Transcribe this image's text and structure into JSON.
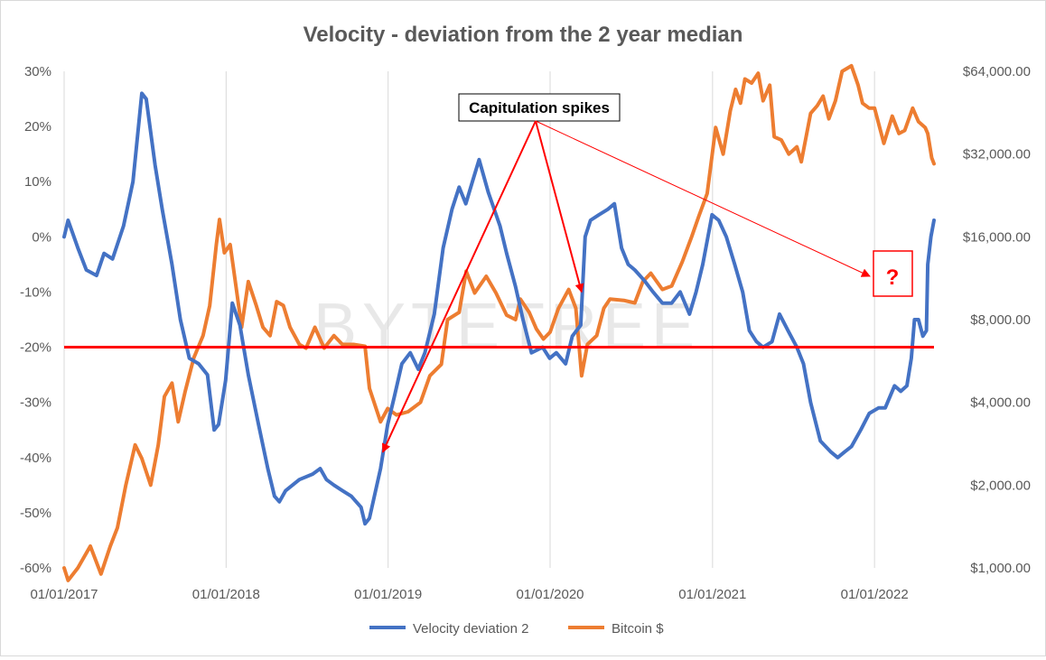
{
  "chart_data": {
    "type": "line",
    "title": "Velocity - deviation from the 2 year median",
    "xlabel": "",
    "ylabel_left": "",
    "ylabel_right": "",
    "x_tick_labels": [
      "01/01/2017",
      "01/01/2018",
      "01/01/2019",
      "01/01/2020",
      "01/01/2021",
      "01/01/2022"
    ],
    "x_range": [
      "2017-01-01",
      "2022-05-15"
    ],
    "y_left": {
      "ticks": [
        30,
        20,
        10,
        0,
        -10,
        -20,
        -30,
        -40,
        -50,
        -60
      ],
      "tick_labels": [
        "30%",
        "20%",
        "10%",
        "0%",
        "-10%",
        "-20%",
        "-30%",
        "-40%",
        "-50%",
        "-60%"
      ],
      "range": [
        -60,
        30
      ],
      "unit": "%"
    },
    "y_right": {
      "scale": "log2",
      "ticks": [
        1000,
        2000,
        4000,
        8000,
        16000,
        32000,
        64000
      ],
      "tick_labels": [
        "$1,000.00",
        "$2,000.00",
        "$4,000.00",
        "$8,000.00",
        "$16,000.00",
        "$32,000.00",
        "$64,000.00"
      ],
      "range": [
        1000,
        64000
      ]
    },
    "grid": "vertical-only",
    "reference_line": {
      "value": -20,
      "axis": "left",
      "color": "#ff0000"
    },
    "legend_position": "bottom",
    "series": [
      {
        "name": "Velocity deviation 2",
        "axis": "left",
        "color": "#4472c4",
        "points": [
          [
            "2017-01-01",
            0
          ],
          [
            "2017-01-10",
            3
          ],
          [
            "2017-02-01",
            -2
          ],
          [
            "2017-02-20",
            -6
          ],
          [
            "2017-03-15",
            -7
          ],
          [
            "2017-04-01",
            -3
          ],
          [
            "2017-04-20",
            -4
          ],
          [
            "2017-05-15",
            2
          ],
          [
            "2017-06-05",
            10
          ],
          [
            "2017-06-25",
            26
          ],
          [
            "2017-07-05",
            25
          ],
          [
            "2017-07-25",
            13
          ],
          [
            "2017-08-10",
            5
          ],
          [
            "2017-09-01",
            -5
          ],
          [
            "2017-09-20",
            -15
          ],
          [
            "2017-10-10",
            -22
          ],
          [
            "2017-10-31",
            -23
          ],
          [
            "2017-11-20",
            -25
          ],
          [
            "2017-12-05",
            -35
          ],
          [
            "2017-12-15",
            -34
          ],
          [
            "2017-12-31",
            -26
          ],
          [
            "2018-01-15",
            -12
          ],
          [
            "2018-02-01",
            -16
          ],
          [
            "2018-02-20",
            -25
          ],
          [
            "2018-03-15",
            -34
          ],
          [
            "2018-04-05",
            -42
          ],
          [
            "2018-04-20",
            -47
          ],
          [
            "2018-05-01",
            -48
          ],
          [
            "2018-05-15",
            -46
          ],
          [
            "2018-06-15",
            -44
          ],
          [
            "2018-07-15",
            -43
          ],
          [
            "2018-08-01",
            -42
          ],
          [
            "2018-08-15",
            -44
          ],
          [
            "2018-09-01",
            -45
          ],
          [
            "2018-09-20",
            -46
          ],
          [
            "2018-10-10",
            -47
          ],
          [
            "2018-11-01",
            -49
          ],
          [
            "2018-11-10",
            -52
          ],
          [
            "2018-11-20",
            -51
          ],
          [
            "2018-12-15",
            -42
          ],
          [
            "2018-12-31",
            -34
          ],
          [
            "2019-01-15",
            -29
          ],
          [
            "2019-02-01",
            -23
          ],
          [
            "2019-02-20",
            -21
          ],
          [
            "2019-03-10",
            -24
          ],
          [
            "2019-03-25",
            -21
          ],
          [
            "2019-04-15",
            -14
          ],
          [
            "2019-05-05",
            -2
          ],
          [
            "2019-05-25",
            5
          ],
          [
            "2019-06-10",
            9
          ],
          [
            "2019-06-25",
            6
          ],
          [
            "2019-07-10",
            10
          ],
          [
            "2019-07-25",
            14
          ],
          [
            "2019-08-15",
            8
          ],
          [
            "2019-09-10",
            2
          ],
          [
            "2019-09-25",
            -3
          ],
          [
            "2019-10-15",
            -9
          ],
          [
            "2019-11-01",
            -15
          ],
          [
            "2019-11-20",
            -21
          ],
          [
            "2019-12-15",
            -20
          ],
          [
            "2019-12-31",
            -22
          ],
          [
            "2020-01-15",
            -21
          ],
          [
            "2020-02-05",
            -23
          ],
          [
            "2020-02-20",
            -18
          ],
          [
            "2020-03-10",
            -16
          ],
          [
            "2020-03-20",
            0
          ],
          [
            "2020-04-01",
            3
          ],
          [
            "2020-04-20",
            4
          ],
          [
            "2020-05-10",
            5
          ],
          [
            "2020-05-25",
            6
          ],
          [
            "2020-06-10",
            -2
          ],
          [
            "2020-06-25",
            -5
          ],
          [
            "2020-07-10",
            -6
          ],
          [
            "2020-08-01",
            -8
          ],
          [
            "2020-08-20",
            -10
          ],
          [
            "2020-09-10",
            -12
          ],
          [
            "2020-10-01",
            -12
          ],
          [
            "2020-10-20",
            -10
          ],
          [
            "2020-11-10",
            -14
          ],
          [
            "2020-11-25",
            -10
          ],
          [
            "2020-12-10",
            -5
          ],
          [
            "2020-12-31",
            4
          ],
          [
            "2021-01-15",
            3
          ],
          [
            "2021-02-01",
            0
          ],
          [
            "2021-02-20",
            -5
          ],
          [
            "2021-03-10",
            -10
          ],
          [
            "2021-03-25",
            -17
          ],
          [
            "2021-04-10",
            -19
          ],
          [
            "2021-04-25",
            -20
          ],
          [
            "2021-05-15",
            -19
          ],
          [
            "2021-06-01",
            -14
          ],
          [
            "2021-06-20",
            -17
          ],
          [
            "2021-07-10",
            -20
          ],
          [
            "2021-07-25",
            -23
          ],
          [
            "2021-08-10",
            -30
          ],
          [
            "2021-09-01",
            -37
          ],
          [
            "2021-09-25",
            -39
          ],
          [
            "2021-10-10",
            -40
          ],
          [
            "2021-10-25",
            -39
          ],
          [
            "2021-11-10",
            -38
          ],
          [
            "2021-12-01",
            -35
          ],
          [
            "2021-12-20",
            -32
          ],
          [
            "2022-01-10",
            -31
          ],
          [
            "2022-01-25",
            -31
          ],
          [
            "2022-02-15",
            -27
          ],
          [
            "2022-03-01",
            -28
          ],
          [
            "2022-03-15",
            -27
          ],
          [
            "2022-03-25",
            -22
          ],
          [
            "2022-04-01",
            -15
          ],
          [
            "2022-04-10",
            -15
          ],
          [
            "2022-04-20",
            -18
          ],
          [
            "2022-04-28",
            -17
          ],
          [
            "2022-05-01",
            -5
          ],
          [
            "2022-05-08",
            0
          ],
          [
            "2022-05-15",
            3
          ]
        ]
      },
      {
        "name": "Bitcoin $",
        "axis": "right",
        "color": "#ed7d31",
        "points": [
          [
            "2017-01-01",
            1000
          ],
          [
            "2017-01-10",
            900
          ],
          [
            "2017-02-01",
            1000
          ],
          [
            "2017-03-01",
            1200
          ],
          [
            "2017-03-25",
            950
          ],
          [
            "2017-04-15",
            1200
          ],
          [
            "2017-05-01",
            1400
          ],
          [
            "2017-05-20",
            2000
          ],
          [
            "2017-06-10",
            2800
          ],
          [
            "2017-06-25",
            2500
          ],
          [
            "2017-07-15",
            2000
          ],
          [
            "2017-08-01",
            2800
          ],
          [
            "2017-08-15",
            4200
          ],
          [
            "2017-09-01",
            4700
          ],
          [
            "2017-09-15",
            3400
          ],
          [
            "2017-10-01",
            4400
          ],
          [
            "2017-10-20",
            5800
          ],
          [
            "2017-11-10",
            7000
          ],
          [
            "2017-11-25",
            9000
          ],
          [
            "2017-12-10",
            15000
          ],
          [
            "2017-12-17",
            18500
          ],
          [
            "2017-12-28",
            14000
          ],
          [
            "2018-01-10",
            15000
          ],
          [
            "2018-01-20",
            11500
          ],
          [
            "2018-02-05",
            7500
          ],
          [
            "2018-02-20",
            11000
          ],
          [
            "2018-03-10",
            9000
          ],
          [
            "2018-03-25",
            7500
          ],
          [
            "2018-04-10",
            7000
          ],
          [
            "2018-04-25",
            9300
          ],
          [
            "2018-05-10",
            9000
          ],
          [
            "2018-05-25",
            7500
          ],
          [
            "2018-06-15",
            6500
          ],
          [
            "2018-06-30",
            6300
          ],
          [
            "2018-07-20",
            7500
          ],
          [
            "2018-08-10",
            6300
          ],
          [
            "2018-09-01",
            7000
          ],
          [
            "2018-09-20",
            6500
          ],
          [
            "2018-10-15",
            6500
          ],
          [
            "2018-11-10",
            6400
          ],
          [
            "2018-11-20",
            4500
          ],
          [
            "2018-12-15",
            3400
          ],
          [
            "2018-12-31",
            3800
          ],
          [
            "2019-01-20",
            3600
          ],
          [
            "2019-02-15",
            3700
          ],
          [
            "2019-03-15",
            4000
          ],
          [
            "2019-04-05",
            5000
          ],
          [
            "2019-05-01",
            5500
          ],
          [
            "2019-05-15",
            8000
          ],
          [
            "2019-06-10",
            8500
          ],
          [
            "2019-06-26",
            12000
          ],
          [
            "2019-07-15",
            10000
          ],
          [
            "2019-08-10",
            11500
          ],
          [
            "2019-09-01",
            10000
          ],
          [
            "2019-09-25",
            8300
          ],
          [
            "2019-10-15",
            8000
          ],
          [
            "2019-10-26",
            9500
          ],
          [
            "2019-11-15",
            8500
          ],
          [
            "2019-12-01",
            7400
          ],
          [
            "2019-12-17",
            6800
          ],
          [
            "2020-01-01",
            7200
          ],
          [
            "2020-01-20",
            8800
          ],
          [
            "2020-02-12",
            10300
          ],
          [
            "2020-02-28",
            8800
          ],
          [
            "2020-03-12",
            5000
          ],
          [
            "2020-03-25",
            6500
          ],
          [
            "2020-04-15",
            7000
          ],
          [
            "2020-05-01",
            8800
          ],
          [
            "2020-05-15",
            9500
          ],
          [
            "2020-06-15",
            9400
          ],
          [
            "2020-07-10",
            9200
          ],
          [
            "2020-07-28",
            11000
          ],
          [
            "2020-08-15",
            11800
          ],
          [
            "2020-09-10",
            10300
          ],
          [
            "2020-10-01",
            10600
          ],
          [
            "2020-10-25",
            13000
          ],
          [
            "2020-11-15",
            16000
          ],
          [
            "2020-12-01",
            19000
          ],
          [
            "2020-12-20",
            23000
          ],
          [
            "2021-01-08",
            40000
          ],
          [
            "2021-01-25",
            32000
          ],
          [
            "2021-02-10",
            46000
          ],
          [
            "2021-02-22",
            55000
          ],
          [
            "2021-03-05",
            49000
          ],
          [
            "2021-03-15",
            60000
          ],
          [
            "2021-03-30",
            58000
          ],
          [
            "2021-04-14",
            63000
          ],
          [
            "2021-04-25",
            50000
          ],
          [
            "2021-05-10",
            57000
          ],
          [
            "2021-05-20",
            37000
          ],
          [
            "2021-06-05",
            36000
          ],
          [
            "2021-06-22",
            32000
          ],
          [
            "2021-07-10",
            34000
          ],
          [
            "2021-07-20",
            30000
          ],
          [
            "2021-08-10",
            45000
          ],
          [
            "2021-08-25",
            48000
          ],
          [
            "2021-09-07",
            52000
          ],
          [
            "2021-09-20",
            43000
          ],
          [
            "2021-10-05",
            50000
          ],
          [
            "2021-10-20",
            64000
          ],
          [
            "2021-11-10",
            67000
          ],
          [
            "2021-11-25",
            57000
          ],
          [
            "2021-12-05",
            49000
          ],
          [
            "2021-12-20",
            47000
          ],
          [
            "2022-01-01",
            47000
          ],
          [
            "2022-01-22",
            35000
          ],
          [
            "2022-02-10",
            44000
          ],
          [
            "2022-02-25",
            38000
          ],
          [
            "2022-03-10",
            39000
          ],
          [
            "2022-03-28",
            47000
          ],
          [
            "2022-04-10",
            42000
          ],
          [
            "2022-04-25",
            40000
          ],
          [
            "2022-05-01",
            38000
          ],
          [
            "2022-05-10",
            31000
          ],
          [
            "2022-05-15",
            29500
          ]
        ]
      }
    ],
    "annotations": [
      {
        "label": "Capitulation spikes",
        "arrow_color": "#ff0000",
        "points_to": [
          "2018-12-20",
          "2020-03-12",
          "2022-04-20"
        ]
      },
      {
        "label": "?",
        "color": "#ff0000"
      }
    ],
    "watermark": "BYTETREE"
  }
}
